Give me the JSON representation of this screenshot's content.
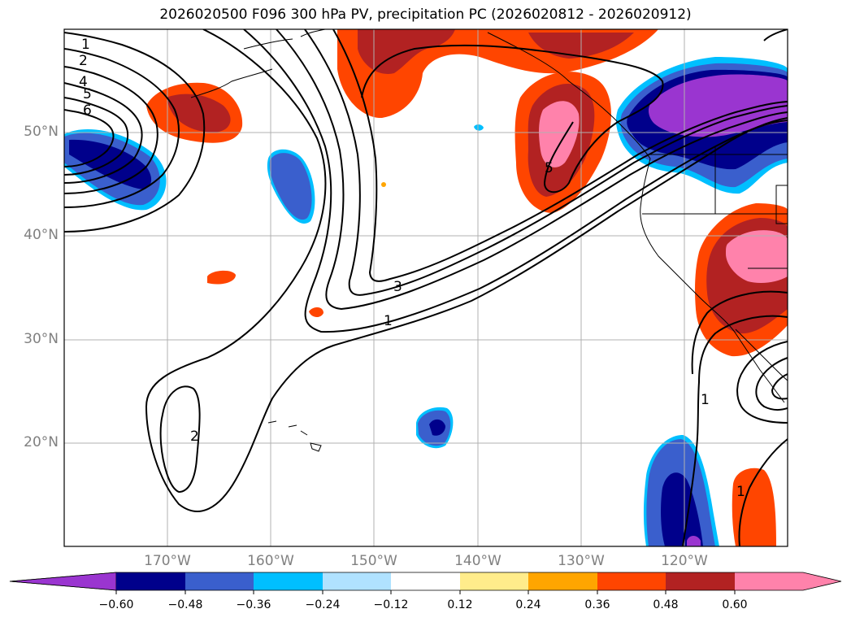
{
  "title": "2026020500 F096 300 hPa PV, precipitation PC (2026020812 - 2026020912)",
  "lat_labels": [
    "50°N",
    "40°N",
    "30°N",
    "20°N"
  ],
  "lon_labels": [
    "170°W",
    "160°W",
    "150°W",
    "140°W",
    "130°W",
    "120°W"
  ],
  "contour_labels": {
    "west": [
      "1",
      "2",
      "4",
      "5",
      "6"
    ],
    "mid_3": "3",
    "mid_1": "1",
    "south_2": "2",
    "north_5": "5",
    "east_1": "1",
    "se_1": "1"
  },
  "colorbar": {
    "ticks": [
      "−0.60",
      "−0.48",
      "−0.36",
      "−0.24",
      "−0.12",
      "0.12",
      "0.24",
      "0.36",
      "0.48",
      "0.60"
    ],
    "colors": [
      "#9a35d0",
      "#00008b",
      "#3a5fcd",
      "#00bfff",
      "#b0e2ff",
      "#ffffff",
      "#ffec8b",
      "#ffa500",
      "#ff4500",
      "#b22222",
      "#ff82ab"
    ]
  },
  "colors": {
    "frame": "#000000",
    "grid": "#b0b0b0",
    "contour": "#000000",
    "coast": "#000000"
  }
}
